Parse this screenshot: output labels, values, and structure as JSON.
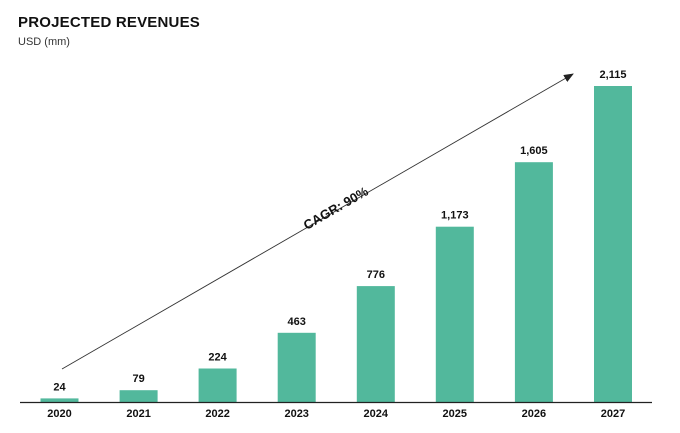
{
  "header": {
    "title": "PROJECTED REVENUES",
    "subtitle": "USD (mm)"
  },
  "annotation": {
    "text": "CAGR: 90%"
  },
  "colors": {
    "bar": "#52b89c",
    "axis": "#222222",
    "arrow": "#333333"
  },
  "chart_data": {
    "type": "bar",
    "title": "PROJECTED REVENUES",
    "subtitle": "USD (mm)",
    "xlabel": "",
    "ylabel": "",
    "categories": [
      "2020",
      "2021",
      "2022",
      "2023",
      "2024",
      "2025",
      "2026",
      "2027"
    ],
    "values": [
      24,
      79,
      224,
      463,
      776,
      1173,
      1605,
      2115
    ],
    "value_labels": [
      "24",
      "79",
      "224",
      "463",
      "776",
      "1,173",
      "1,605",
      "2,115"
    ],
    "ylim": [
      0,
      2115
    ],
    "grid": false,
    "legend": "none",
    "annotations": [
      "CAGR: 90%"
    ]
  }
}
